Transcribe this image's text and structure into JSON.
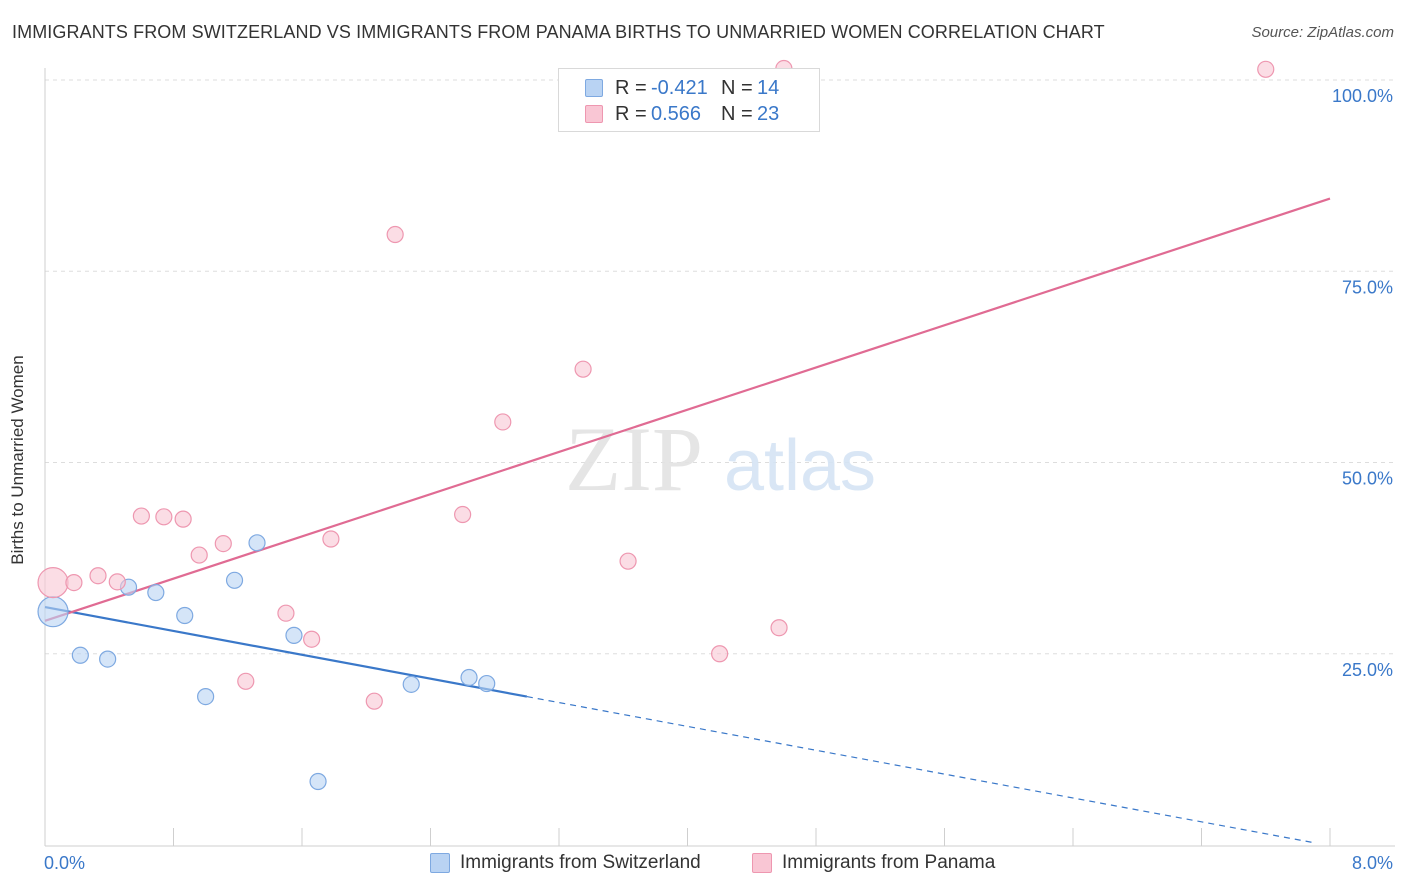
{
  "title": "IMMIGRANTS FROM SWITZERLAND VS IMMIGRANTS FROM PANAMA BIRTHS TO UNMARRIED WOMEN CORRELATION CHART",
  "source": "Source: ZipAtlas.com",
  "watermark": {
    "zip": "ZIP",
    "atlas": "atlas"
  },
  "legend": {
    "rows": [
      {
        "r_label": "R =",
        "r_value": "-0.421",
        "n_label": "N =",
        "n_value": "14",
        "fill": "#b9d3f3",
        "stroke": "#7ea9e1"
      },
      {
        "r_label": "R =",
        "r_value": "0.566",
        "n_label": "N =",
        "n_value": "23",
        "fill": "#f9c6d4",
        "stroke": "#ee97b0"
      }
    ]
  },
  "bottom_legend": [
    {
      "label": "Immigrants from Switzerland",
      "fill": "#b9d3f3",
      "stroke": "#7ea9e1"
    },
    {
      "label": "Immigrants from Panama",
      "fill": "#f9c6d4",
      "stroke": "#ee97b0"
    }
  ],
  "chart_data": {
    "type": "scatter",
    "title": "IMMIGRANTS FROM SWITZERLAND VS IMMIGRANTS FROM PANAMA BIRTHS TO UNMARRIED WOMEN CORRELATION CHART",
    "xlabel": "",
    "ylabel": "Births to Unmarried Women",
    "xlim": [
      0,
      8
    ],
    "ylim": [
      0,
      100
    ],
    "x_tick_labels": [
      "0.0%",
      "8.0%"
    ],
    "y_ticks": [
      {
        "value": 25,
        "label": "25.0%"
      },
      {
        "value": 50,
        "label": "50.0%"
      },
      {
        "value": 75,
        "label": "75.0%"
      },
      {
        "value": 100,
        "label": "100.0%"
      }
    ],
    "series": [
      {
        "name": "Immigrants from Switzerland",
        "color": "#7ea9e1",
        "fill": "#b9d3f3",
        "trend_color": "#3a78c9",
        "points": [
          {
            "x": 0.05,
            "y": 30.5,
            "big": true
          },
          {
            "x": 0.22,
            "y": 24.8
          },
          {
            "x": 0.39,
            "y": 24.3
          },
          {
            "x": 0.52,
            "y": 33.7
          },
          {
            "x": 0.69,
            "y": 33.0
          },
          {
            "x": 0.87,
            "y": 30.0
          },
          {
            "x": 1.0,
            "y": 19.4
          },
          {
            "x": 1.18,
            "y": 34.6
          },
          {
            "x": 1.32,
            "y": 39.5
          },
          {
            "x": 1.55,
            "y": 27.4
          },
          {
            "x": 1.7,
            "y": 8.3
          },
          {
            "x": 2.28,
            "y": 21.0
          },
          {
            "x": 2.64,
            "y": 21.9
          },
          {
            "x": 2.75,
            "y": 21.1
          }
        ],
        "trend": {
          "x0": 0,
          "y0": 31.1,
          "x1": 3.0,
          "y1": 19.4,
          "x_dash_end": 7.9,
          "y_dash_end": 0.3
        }
      },
      {
        "name": "Immigrants from Panama",
        "color": "#ee97b0",
        "fill": "#f9c6d4",
        "trend_color": "#e06b93",
        "points": [
          {
            "x": 0.05,
            "y": 34.3,
            "big": true
          },
          {
            "x": 0.18,
            "y": 34.3
          },
          {
            "x": 0.33,
            "y": 35.2
          },
          {
            "x": 0.45,
            "y": 34.4
          },
          {
            "x": 0.6,
            "y": 43.0
          },
          {
            "x": 0.74,
            "y": 42.9
          },
          {
            "x": 0.86,
            "y": 42.6
          },
          {
            "x": 0.96,
            "y": 37.9
          },
          {
            "x": 1.11,
            "y": 39.4
          },
          {
            "x": 1.25,
            "y": 21.4
          },
          {
            "x": 1.5,
            "y": 30.3
          },
          {
            "x": 1.66,
            "y": 26.9
          },
          {
            "x": 1.78,
            "y": 40.0
          },
          {
            "x": 2.05,
            "y": 18.8
          },
          {
            "x": 2.18,
            "y": 79.8
          },
          {
            "x": 2.6,
            "y": 43.2
          },
          {
            "x": 2.85,
            "y": 55.3
          },
          {
            "x": 3.35,
            "y": 62.2
          },
          {
            "x": 3.63,
            "y": 37.1
          },
          {
            "x": 4.2,
            "y": 25.0
          },
          {
            "x": 4.57,
            "y": 28.4
          },
          {
            "x": 4.6,
            "y": 101.5
          },
          {
            "x": 7.6,
            "y": 101.4
          }
        ],
        "trend": {
          "x0": 0,
          "y0": 29.3,
          "x1": 8.0,
          "y1": 84.5
        }
      }
    ]
  }
}
